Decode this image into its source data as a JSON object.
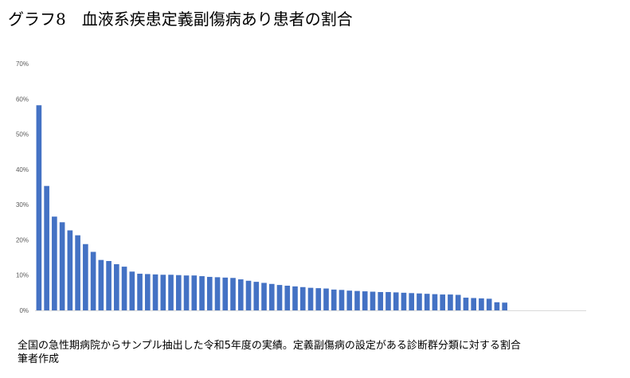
{
  "title": "グラフ8　血液系疾患定義副傷病あり患者の割合",
  "caption": {
    "line1": "全国の急性期病院からサンプル抽出した令和5年度の実績。定義副傷病の設定がある診断群分類に対する割合",
    "line2": "筆者作成"
  },
  "colors": {
    "bar": "#4472c4",
    "axis": "#d9d9d9",
    "tick": "#595959"
  },
  "chart_data": {
    "type": "bar",
    "title": "グラフ8　血液系疾患定義副傷病あり患者の割合",
    "xlabel": "",
    "ylabel": "",
    "ylim": [
      0,
      70
    ],
    "yticks": [
      "70%",
      "60%",
      "50%",
      "40%",
      "30%",
      "20%",
      "10%",
      "0%"
    ],
    "ytick_values": [
      70,
      60,
      50,
      40,
      30,
      20,
      10,
      0
    ],
    "grid": false,
    "legend": "none",
    "empty_slots_after_bars": 10,
    "values": [
      58.2,
      35.3,
      26.6,
      25.0,
      22.7,
      21.3,
      18.8,
      16.6,
      14.3,
      14.0,
      13.1,
      12.4,
      11.0,
      10.4,
      10.3,
      10.2,
      10.1,
      10.1,
      10.0,
      9.9,
      9.9,
      9.7,
      9.5,
      9.4,
      9.3,
      9.2,
      8.8,
      8.4,
      8.1,
      7.8,
      7.5,
      7.2,
      7.0,
      6.8,
      6.6,
      6.4,
      6.3,
      6.2,
      5.9,
      5.8,
      5.6,
      5.5,
      5.4,
      5.3,
      5.2,
      5.2,
      5.1,
      5.0,
      4.9,
      4.8,
      4.7,
      4.6,
      4.5,
      4.5,
      4.4,
      3.6,
      3.5,
      3.4,
      3.3,
      2.3,
      2.2
    ]
  }
}
